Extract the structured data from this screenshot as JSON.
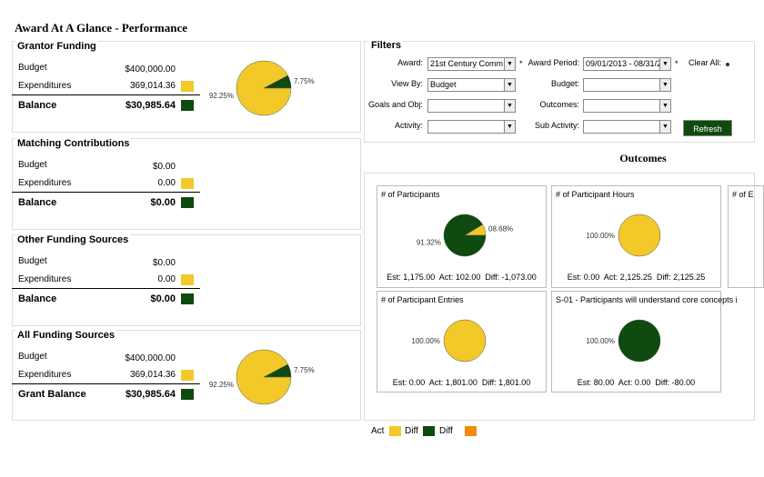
{
  "header": {
    "title": "Award At A Glance - Performance"
  },
  "funding_panels": [
    {
      "title": "Grantor Funding",
      "rows": [
        {
          "label": "Budget",
          "value": "$400,000.00"
        },
        {
          "label": "Expenditures",
          "value": "369,014.36"
        },
        {
          "label": "Balance",
          "value": "$30,985.64"
        }
      ],
      "pie": {
        "slices": [
          {
            "value": 92.25,
            "label": "92.25%",
            "color": "#f2c928"
          },
          {
            "value": 7.75,
            "label": "7.75%",
            "color": "#0f4a0f"
          }
        ]
      }
    },
    {
      "title": "Matching Contributions",
      "rows": [
        {
          "label": "Budget",
          "value": "$0.00"
        },
        {
          "label": "Expenditures",
          "value": "0.00"
        },
        {
          "label": "Balance",
          "value": "$0.00"
        }
      ]
    },
    {
      "title": "Other Funding Sources",
      "rows": [
        {
          "label": "Budget",
          "value": "$0.00"
        },
        {
          "label": "Expenditures",
          "value": "0.00"
        },
        {
          "label": "Balance",
          "value": "$0.00"
        }
      ]
    },
    {
      "title": "All Funding Sources",
      "rows": [
        {
          "label": "Budget",
          "value": "$400,000.00"
        },
        {
          "label": "Expenditures",
          "value": "369,014.36"
        },
        {
          "label": "Grant Balance",
          "value": "$30,985.64"
        }
      ],
      "pie": {
        "slices": [
          {
            "value": 92.25,
            "label": "92.25%",
            "color": "#f2c928"
          },
          {
            "value": 7.75,
            "label": "7.75%",
            "color": "#0f4a0f"
          }
        ]
      }
    }
  ],
  "filters": {
    "title": "Filters",
    "fields": [
      {
        "label": "Award:",
        "value": "21st Century Comm",
        "marker": "*"
      },
      {
        "label": "Award Period:",
        "value": "09/01/2013 - 08/31/20",
        "marker": "*"
      },
      {
        "label": "View By:",
        "value": "Budget"
      },
      {
        "label": "Budget:"
      },
      {
        "label": "Goals and Obj:"
      },
      {
        "label": "Outcomes:"
      },
      {
        "label": "Activity:"
      },
      {
        "label": "Sub Activity:"
      }
    ],
    "clear_all": "Clear All:",
    "button": "Refresh"
  },
  "outcomes": {
    "title": "Outcomes",
    "cards": [
      {
        "title": "# of Participants",
        "footer": "Est: 1,175.00  Act: 102.00  Diff: -1,073.00",
        "pie": {
          "slices": [
            {
              "value": 91.32,
              "label": "91.32%",
              "color": "#0f4a0f"
            },
            {
              "value": 8.68,
              "label": "08.68%",
              "color": "#f2c928"
            }
          ]
        }
      },
      {
        "title": "# of Participant Hours",
        "footer": "Est: 0.00  Act: 2,125.25  Diff: 2,125.25",
        "pie": {
          "slices": [
            {
              "value": 100,
              "label": "100.00%",
              "color": "#f2c928"
            }
          ]
        }
      },
      {
        "title": "# of E"
      },
      {
        "title": "# of Participant Entries",
        "footer": "Est: 0.00  Act: 1,801.00  Diff: 1,801.00",
        "pie": {
          "slices": [
            {
              "value": 100,
              "label": "100.00%",
              "color": "#f2c928"
            }
          ]
        }
      },
      {
        "title": "S-01 - Participants will understand core concepts i",
        "footer": "Est: 80.00  Act: 0.00  Diff: -80.00",
        "pie": {
          "slices": [
            {
              "value": 100,
              "label": "100.00%",
              "color": "#0f4a0f"
            }
          ]
        }
      }
    ]
  },
  "legend": [
    {
      "name": "Act",
      "color": "#f2c928"
    },
    {
      "name": "Diff",
      "color": "#0f4a0f"
    },
    {
      "name": "Diff",
      "color": "#f58a0a"
    }
  ]
}
